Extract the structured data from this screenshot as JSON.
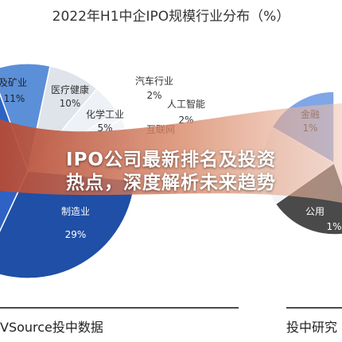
{
  "chart_data": [
    {
      "type": "pie",
      "title": "2022年H1中企IPO规模行业分布（%）",
      "slices": [
        {
          "label": "制造业",
          "value": 29,
          "value_text": "29%",
          "color": "#1f4fa6"
        },
        {
          "label": "源及矿业",
          "value": 11,
          "value_text": "11%",
          "color": "#5b8fd8"
        },
        {
          "label": "医疗健康",
          "value": 10,
          "value_text": "10%",
          "color": "#dfe4ea"
        },
        {
          "label": "化学工业",
          "value": 5,
          "value_text": "5%",
          "color": "#eef1f5"
        },
        {
          "label": "汽车行业",
          "value": 2,
          "value_text": "2%",
          "color": "#f3f5f8"
        },
        {
          "label": "人工智能",
          "value": 2,
          "value_text": "2%",
          "color": "#f3f5f8"
        },
        {
          "label": "互联网",
          "value": null,
          "value_text": "",
          "color": "#f3f5f8"
        }
      ]
    },
    {
      "type": "pie",
      "title": "",
      "slices": [
        {
          "label": "金融",
          "value": 1,
          "value_text": "1%",
          "color": "#7fa6e6"
        },
        {
          "label": "公用",
          "value": 1,
          "value_text": "1%",
          "color": "#4a4a4a"
        }
      ]
    }
  ],
  "source_left": "VSource投中数据",
  "source_right": "投中研究",
  "overlay": {
    "line1": "IPO公司最新排名及投资",
    "line2": "热点，深度解析未来趋势"
  },
  "colors": {
    "band": "#c96b4a",
    "dark_slice": "#1f4fa6",
    "light_blue": "#7fa6e6"
  }
}
